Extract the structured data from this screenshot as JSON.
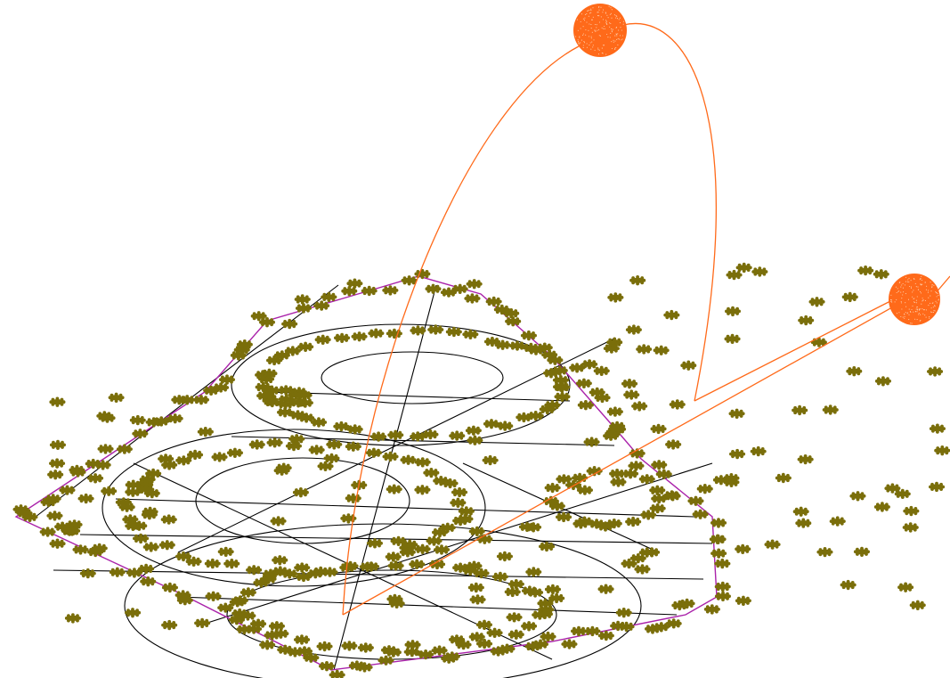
{
  "colors": {
    "background": "#ffffff",
    "wireframe": "#000000",
    "boundary": "#aa22aa",
    "scatter": "#7a6e0a",
    "arc": "#ff6a1a",
    "sphere": "#ff6a1a",
    "sphere_speckle": "#ffd2b0"
  }
}
